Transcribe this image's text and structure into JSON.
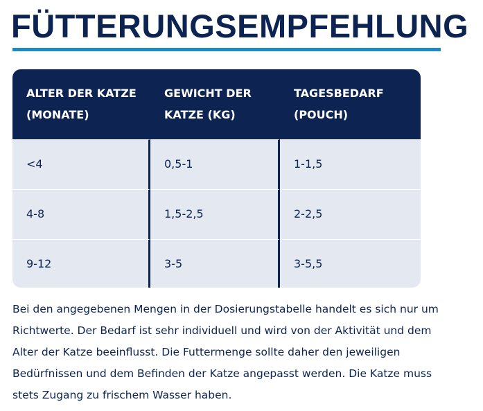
{
  "title": "FÜTTERUNGSEMPFEHLUNG",
  "table": {
    "header": [
      [
        "ALTER DER KATZE",
        "(MONATE)"
      ],
      [
        "GEWICHT DER",
        "KATZE (KG)"
      ],
      [
        "TAGESBEDARF",
        "(POUCH)"
      ]
    ],
    "rows": [
      [
        "<4",
        "0,5-1",
        "1-1,5"
      ],
      [
        "4-8",
        "1,5-2,5",
        "2-2,5"
      ],
      [
        "9-12",
        "3-5",
        "3-5,5"
      ]
    ]
  },
  "paragraph": [
    "Bei den angegebenen Mengen in der Dosierungstabelle handelt es sich nur um",
    "Richtwerte. Der Bedarf ist sehr individuell und wird von der Aktivität und dem",
    "Alter der Katze beeinflusst. Die Futtermenge sollte daher den jeweiligen",
    "Bedürfnissen und dem Befinden der Katze angepasst werden. Die Katze muss",
    "stets Zugang zu frischem Wasser haben."
  ]
}
